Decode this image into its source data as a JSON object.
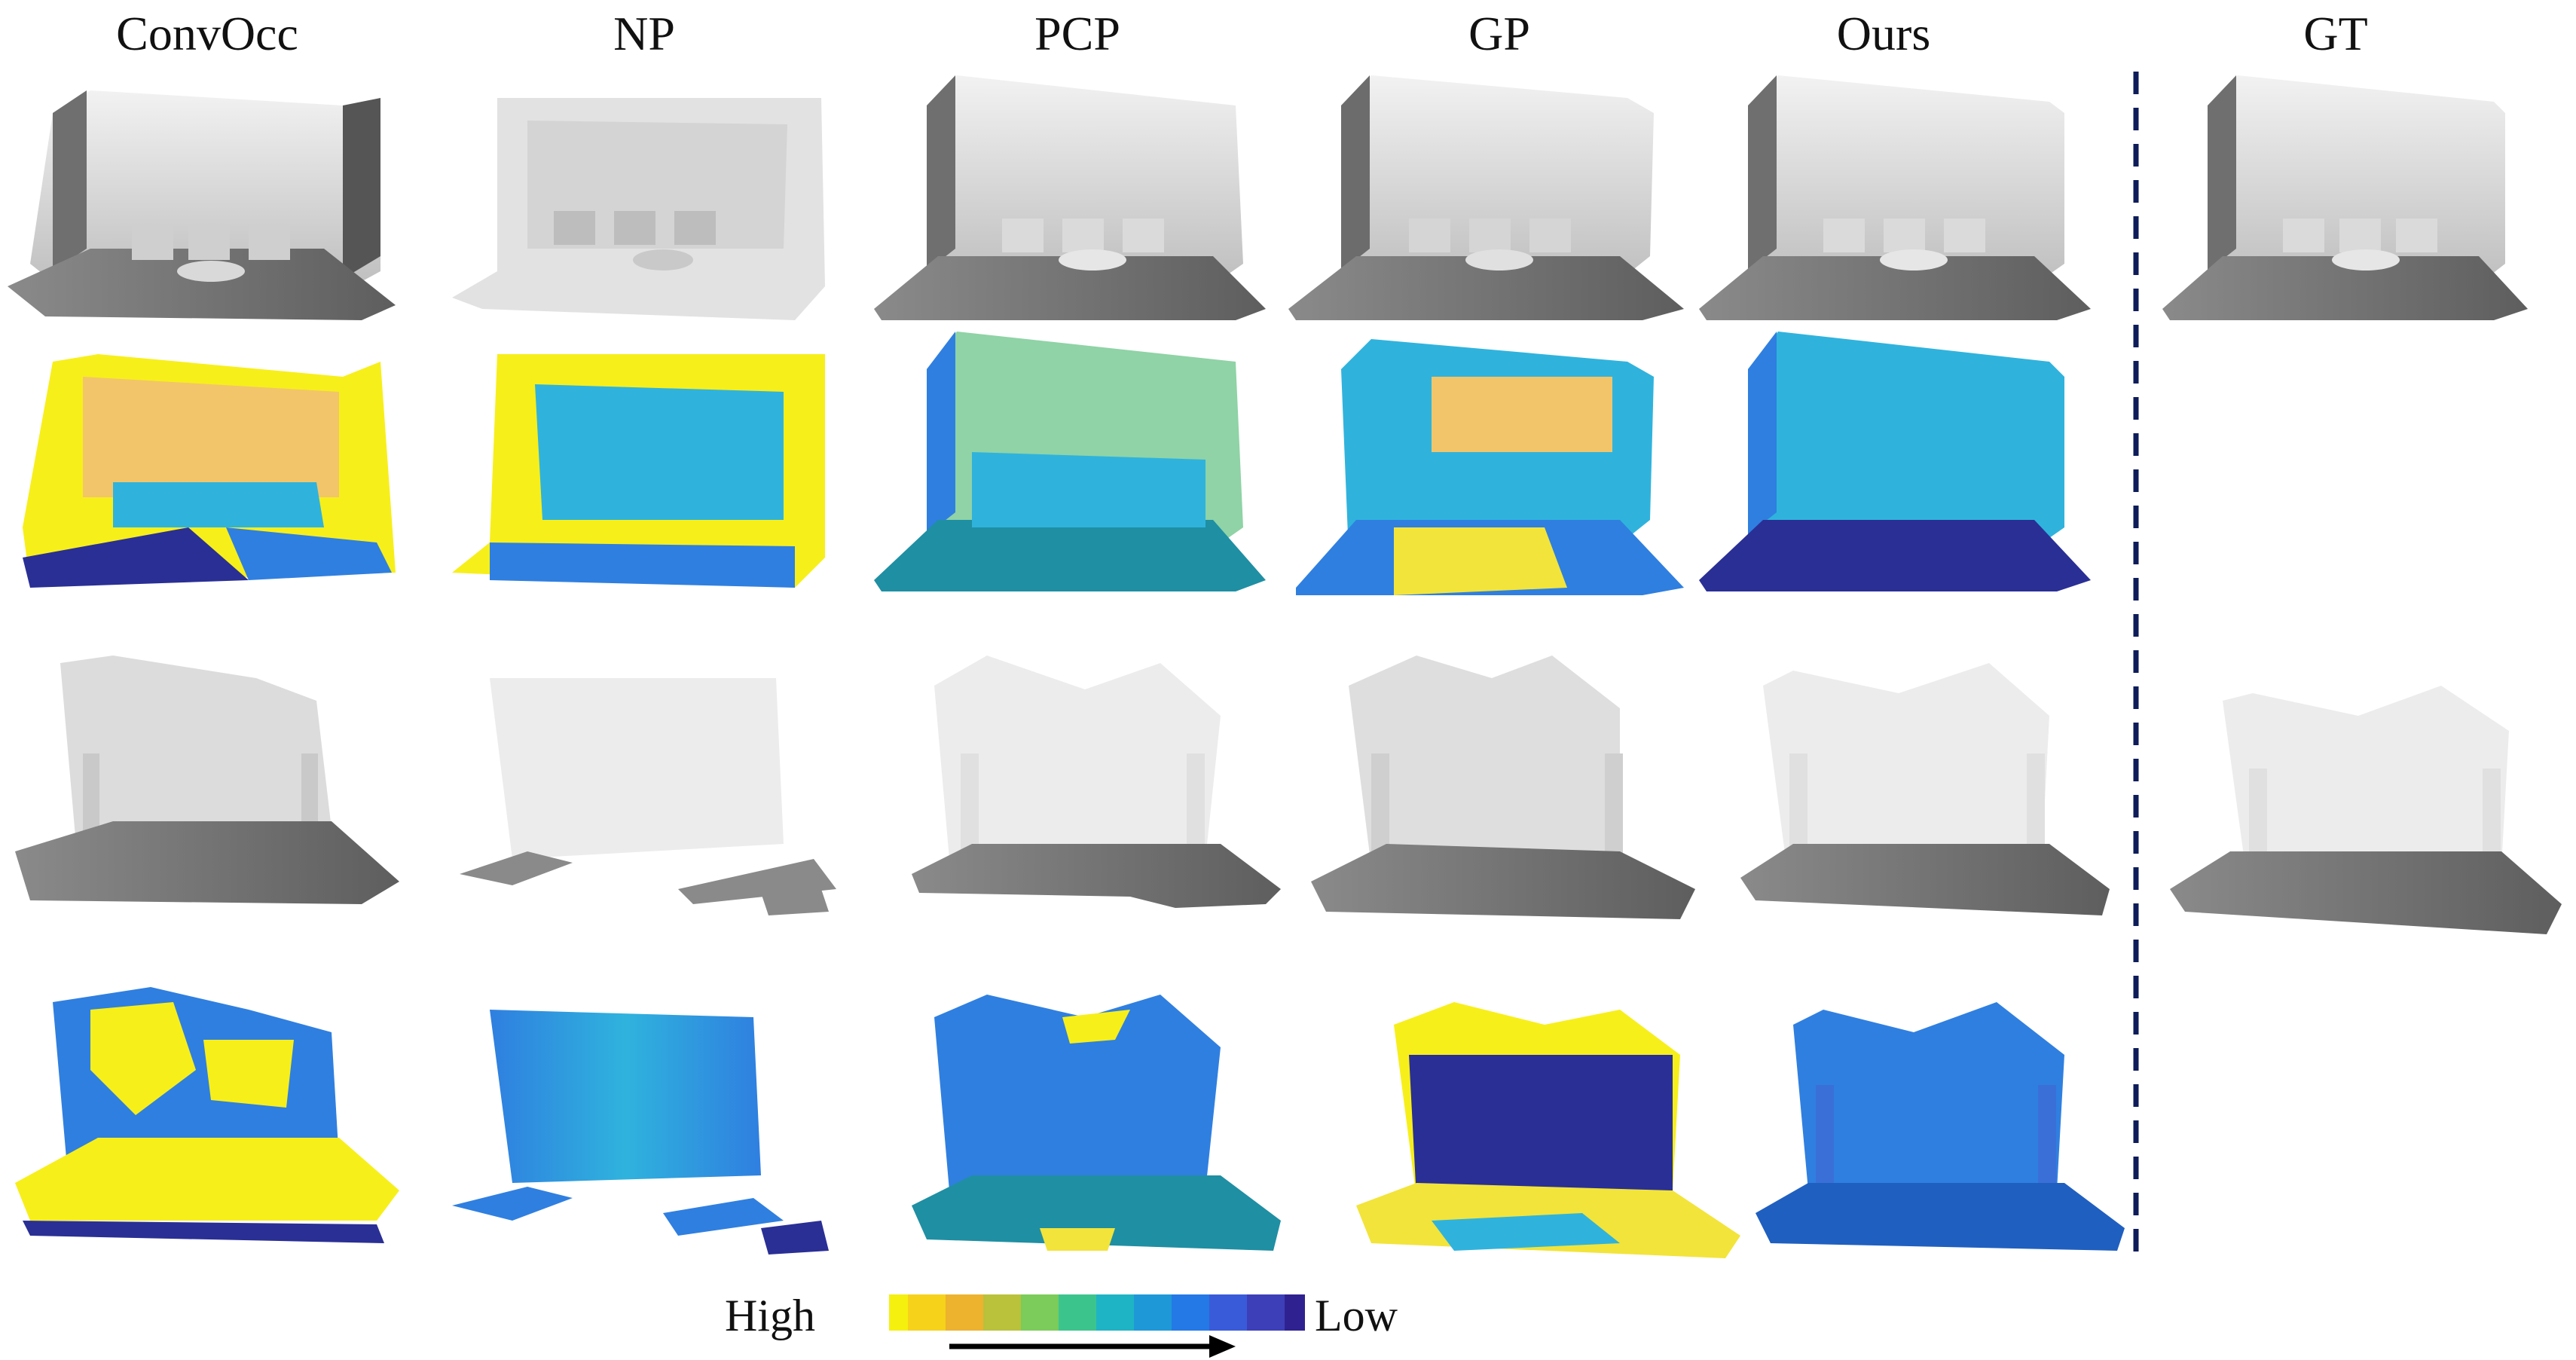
{
  "figure": {
    "columns": [
      "ConvOcc",
      "NP",
      "PCP",
      "GP",
      "Ours",
      "GT"
    ],
    "legend": {
      "high_label": "High",
      "low_label": "Low",
      "colormap": [
        "#f5f00e",
        "#f6d21a",
        "#edb22e",
        "#b9c23a",
        "#7bcc5a",
        "#3cc48d",
        "#1fb4c5",
        "#1f98d8",
        "#2479e6",
        "#3a5bd9",
        "#3d3fb8",
        "#2f2290"
      ]
    },
    "colors": {
      "divider": "#0e1c5a",
      "mesh_light": "#e6e6e6",
      "mesh_mid": "#c2c2c2",
      "mesh_dark": "#777777",
      "err_yellow": "#f7ef1a",
      "err_light_blue": "#2fb3dd",
      "err_blue": "#2f7fe0",
      "err_dark": "#2a2f95",
      "err_teal": "#1f8fa3"
    }
  }
}
